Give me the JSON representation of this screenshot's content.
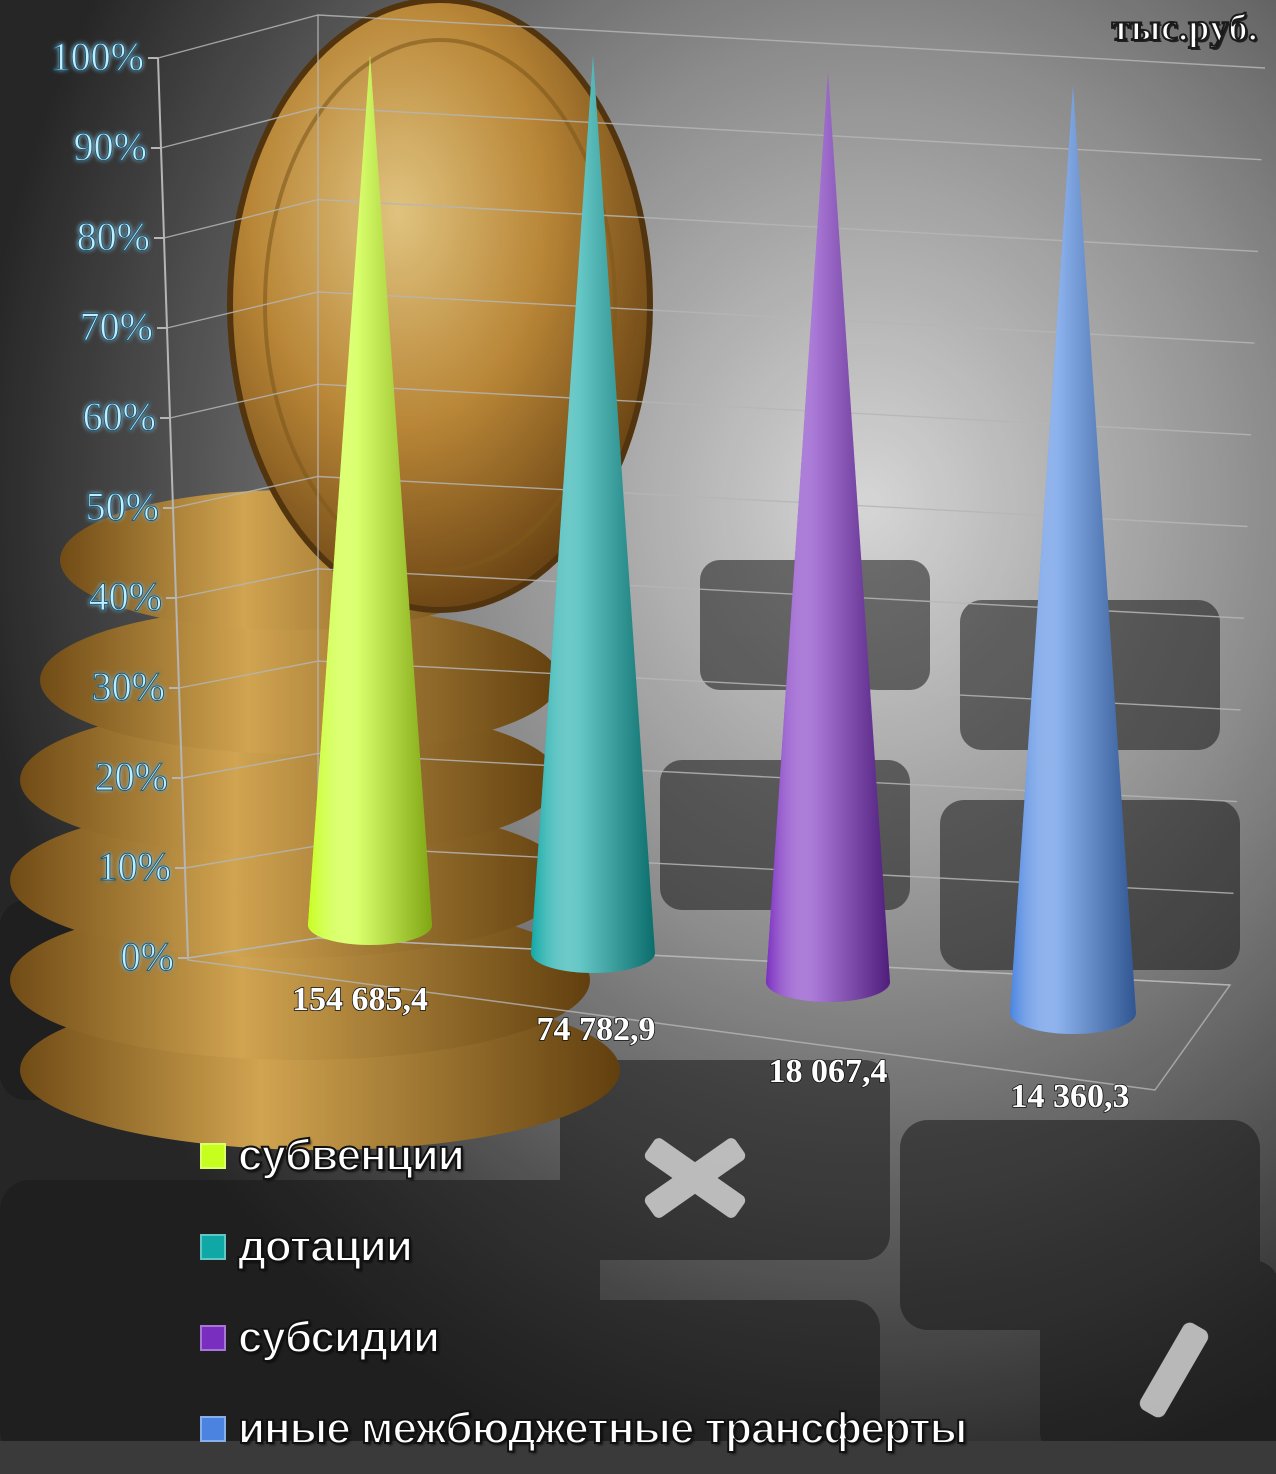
{
  "unit_label": "тыс.руб.",
  "colors": {
    "subventions": "#c6ff1e",
    "grants": "#10a8a6",
    "subsidies": "#7a2ec0",
    "other": "#4a84e0",
    "tick_label": "#bfeeff",
    "grid": "#b5b5b5"
  },
  "chart_data": {
    "type": "bar",
    "shape": "cone",
    "stacking": "percent",
    "y_ticks": [
      "0%",
      "10%",
      "20%",
      "30%",
      "40%",
      "50%",
      "60%",
      "70%",
      "80%",
      "90%",
      "100%"
    ],
    "ylim": [
      0,
      100
    ],
    "grid": true,
    "legend_position": "bottom-left",
    "series": [
      {
        "name": "субвенции",
        "value": 154685.4,
        "value_label": "154 685,4",
        "percent": 100,
        "color": "#c6ff1e"
      },
      {
        "name": "дотации",
        "value": 74782.9,
        "value_label": "74 782,9",
        "percent": 100,
        "color": "#10a8a6"
      },
      {
        "name": "субсидии",
        "value": 18067.4,
        "value_label": "18 067,4",
        "percent": 100,
        "color": "#7a2ec0"
      },
      {
        "name": "иные межбюджетные трансферты",
        "value": 14360.3,
        "value_label": "14 360,3",
        "percent": 100,
        "color": "#4a84e0"
      }
    ]
  }
}
